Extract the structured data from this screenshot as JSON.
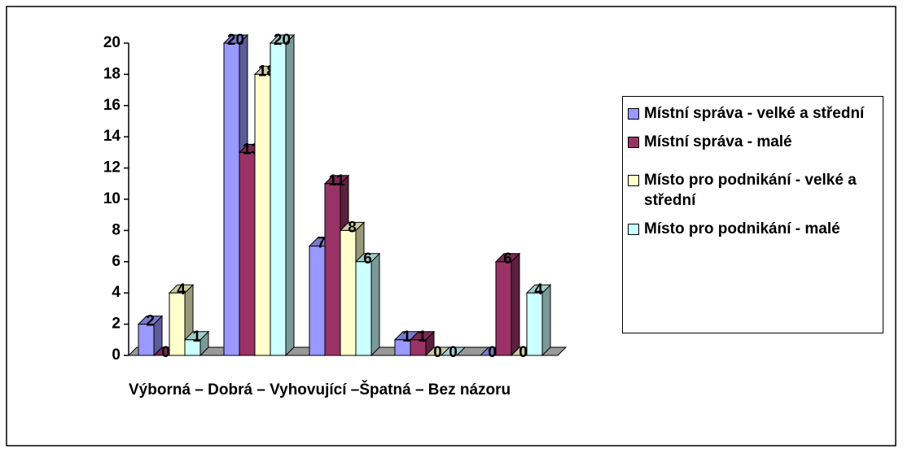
{
  "chart_data": {
    "type": "bar3d",
    "x_label": "Výborná – Dobrá – Vyhovující –Špatná – Bez názoru",
    "categories": [
      null,
      null,
      null,
      null,
      null
    ],
    "series": [
      {
        "name": "Místní správa - velké a střední",
        "color": "#9999ff",
        "values": [
          2,
          20,
          7,
          1,
          0
        ]
      },
      {
        "name": "Místní správa - malé",
        "color": "#993366",
        "values": [
          0,
          13,
          11,
          1,
          6
        ]
      },
      {
        "name": "Místo pro podnikání - velké a střední",
        "color": "#ffffcc",
        "values": [
          4,
          18,
          8,
          0,
          0
        ]
      },
      {
        "name": "Místo pro podnikání - malé",
        "color": "#ccffff",
        "values": [
          1,
          20,
          6,
          0,
          4
        ]
      }
    ],
    "ylim": [
      0,
      20
    ],
    "yticks": [
      0,
      2,
      4,
      6,
      8,
      10,
      12,
      14,
      16,
      18,
      20
    ]
  }
}
